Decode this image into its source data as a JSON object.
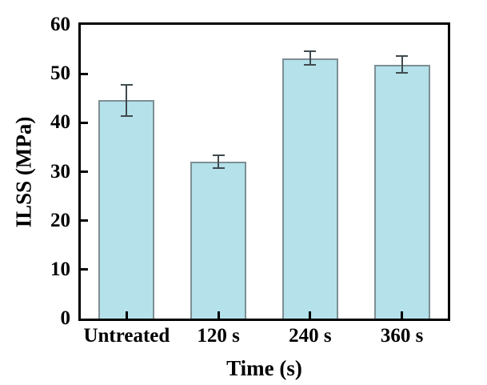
{
  "chart_data": {
    "type": "bar",
    "title": "",
    "categories": [
      "Untreated",
      "120 s",
      "240 s",
      "360 s"
    ],
    "values": [
      44.6,
      32.0,
      53.2,
      51.9
    ],
    "error_bars": [
      3.2,
      1.3,
      1.4,
      1.7
    ],
    "xlabel": "Time (s)",
    "ylabel": "ILSS (MPa)",
    "ylim": [
      0,
      60
    ],
    "yticks": [
      0,
      10,
      20,
      30,
      40,
      50,
      60
    ],
    "grid": false,
    "legend": null,
    "colors": {
      "bar_fill": "#b4e1ea",
      "bar_edge": "#7d8f94",
      "error_bar": "#3f4a4f",
      "axis": "#000000",
      "text": "#000000",
      "background": "#ffffff"
    }
  }
}
